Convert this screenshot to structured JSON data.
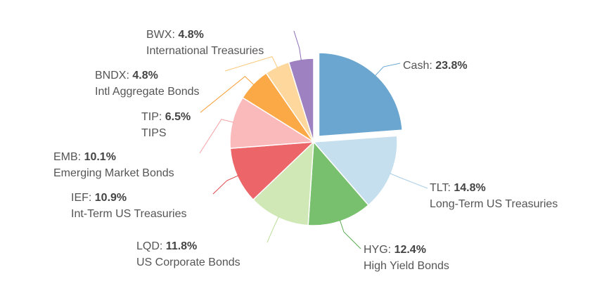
{
  "chart_data": {
    "type": "pie",
    "title": "",
    "exploded": "CASH",
    "slices": [
      {
        "ticker": "CASH",
        "display": "Cash",
        "name": "",
        "percent": 23.8,
        "value_label": "23.8%",
        "color": "#6aa6cf",
        "line_color": "#6aa6cf"
      },
      {
        "ticker": "TLT",
        "display": "TLT",
        "name": "Long-Term US Treasuries",
        "percent": 14.8,
        "value_label": "14.8%",
        "color": "#c6dfee",
        "line_color": "#a9cde6"
      },
      {
        "ticker": "HYG",
        "display": "HYG",
        "name": "High Yield Bonds",
        "percent": 12.4,
        "value_label": "12.4%",
        "color": "#78c06d",
        "line_color": "#5faa55"
      },
      {
        "ticker": "LQD",
        "display": "LQD",
        "name": "US Corporate Bonds",
        "percent": 11.8,
        "value_label": "11.8%",
        "color": "#cfe8b5",
        "line_color": "#b9dd98"
      },
      {
        "ticker": "IEF",
        "display": "IEF",
        "name": "Int-Term US Treasuries",
        "percent": 10.9,
        "value_label": "10.9%",
        "color": "#ec6569",
        "line_color": "#e0474c"
      },
      {
        "ticker": "EMB",
        "display": "EMB",
        "name": "Emerging Market Bonds",
        "percent": 10.1,
        "value_label": "10.1%",
        "color": "#fab9bb",
        "line_color": "#f7a1a4"
      },
      {
        "ticker": "TIP",
        "display": "TIP",
        "name": "TIPS",
        "percent": 6.5,
        "value_label": "6.5%",
        "color": "#fba946",
        "line_color": "#f79a2e"
      },
      {
        "ticker": "BNDX",
        "display": "BNDX",
        "name": "Intl Aggregate Bonds",
        "percent": 4.8,
        "value_label": "4.8%",
        "color": "#fdd79b",
        "line_color": "#fbc879"
      },
      {
        "ticker": "BWX",
        "display": "BWX",
        "name": "International Treasuries",
        "percent": 4.8,
        "value_label": "4.8%",
        "color": "#9d81c0",
        "line_color": "#8c6cb5"
      }
    ]
  }
}
